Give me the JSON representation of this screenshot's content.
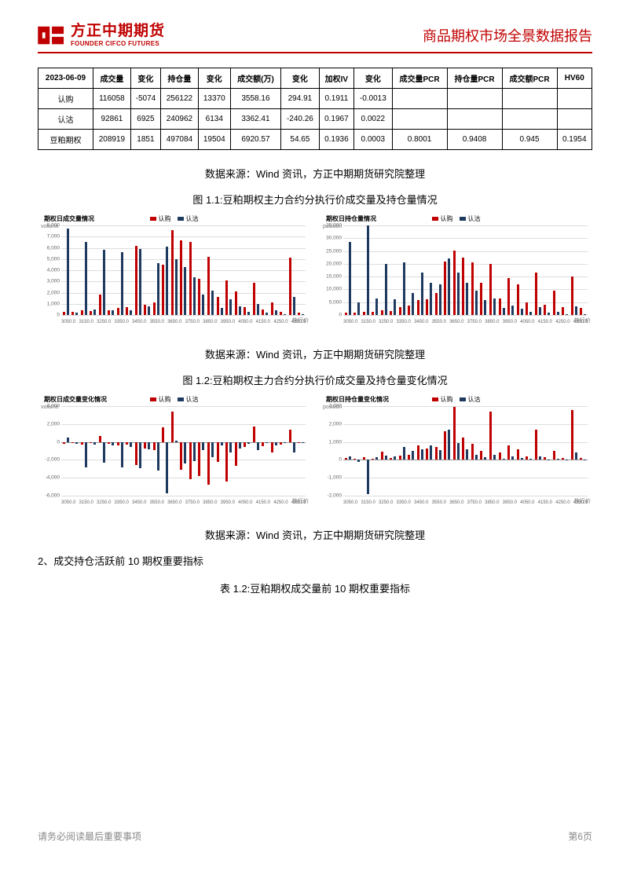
{
  "header": {
    "logo_cn": "方正中期期货",
    "logo_en": "FOUNDER CIFCO FUTURES",
    "doc_title": "商品期权市场全景数据报告"
  },
  "colors": {
    "accent": "#c00000",
    "navy": "#1f3a5f",
    "grid": "#dddddd",
    "text": "#000000",
    "footer": "#888888"
  },
  "table1": {
    "headers": [
      "2023-06-09",
      "成交量",
      "变化",
      "持仓量",
      "变化",
      "成交额(万)",
      "变化",
      "加权IV",
      "变化",
      "成交量PCR",
      "持仓量PCR",
      "成交额PCR",
      "HV60"
    ],
    "rows": [
      [
        "认购",
        "116058",
        "-5074",
        "256122",
        "13370",
        "3558.16",
        "294.91",
        "0.1911",
        "-0.0013",
        "",
        "",
        "",
        ""
      ],
      [
        "认沽",
        "92861",
        "6925",
        "240962",
        "6134",
        "3362.41",
        "-240.26",
        "0.1967",
        "0.0022",
        "",
        "",
        "",
        ""
      ],
      [
        "豆粕期权",
        "208919",
        "1851",
        "497084",
        "19504",
        "6920.57",
        "54.65",
        "0.1936",
        "0.0003",
        "0.8001",
        "0.9408",
        "0.945",
        "0.1954"
      ]
    ]
  },
  "source_text": "数据来源：Wind 资讯，方正中期期货研究院整理",
  "fig11_title": "图 1.1:豆粕期权主力合约分执行价成交量及持仓量情况",
  "fig12_title": "图 1.2:豆粕期权主力合约分执行价成交量及持仓量变化情况",
  "section2_heading": "2、成交持仓活跃前 10 期权重要指标",
  "table12_caption": "表 1.2:豆粕期权成交量前 10 期权重要指标",
  "footer": {
    "disclaimer": "请务必阅读最后重要事项",
    "page": "第6页"
  },
  "legend": {
    "call": "认购",
    "put": "认沽"
  },
  "chart_axis": {
    "strike_label": "执行价"
  },
  "chart11L": {
    "title": "期权日成交量情况",
    "ylabel": "volume",
    "ylim": [
      0,
      8000
    ],
    "ytick_step": 1000,
    "strikes": [
      3050,
      3100,
      3150,
      3200,
      3250,
      3300,
      3350,
      3400,
      3450,
      3500,
      3550,
      3600,
      3650,
      3700,
      3750,
      3800,
      3850,
      3900,
      3950,
      4000,
      4050,
      4100,
      4150,
      4200,
      4250,
      4300,
      4350
    ],
    "call": [
      300,
      250,
      400,
      350,
      1800,
      450,
      600,
      700,
      6200,
      900,
      1100,
      4500,
      7600,
      6700,
      6500,
      3200,
      5200,
      1600,
      3100,
      2100,
      700,
      2900,
      500,
      1100,
      300,
      5100,
      200
    ],
    "put": [
      7700,
      200,
      6500,
      500,
      5800,
      400,
      5600,
      450,
      5900,
      800,
      4600,
      6100,
      5000,
      4300,
      3400,
      1800,
      2200,
      600,
      1400,
      800,
      300,
      1000,
      200,
      400,
      100,
      1600,
      50
    ]
  },
  "chart11R": {
    "title": "期权日持仓量情况",
    "ylabel": "position",
    "ylim": [
      0,
      35000
    ],
    "ytick_step": 5000,
    "strikes": [
      3050,
      3100,
      3150,
      3200,
      3250,
      3300,
      3350,
      3400,
      3450,
      3500,
      3550,
      3600,
      3650,
      3700,
      3750,
      3800,
      3850,
      3900,
      3950,
      4000,
      4050,
      4100,
      4150,
      4200,
      4250,
      4300,
      4350
    ],
    "call": [
      1000,
      800,
      1200,
      1100,
      2000,
      1600,
      3200,
      3800,
      5800,
      6200,
      8500,
      20800,
      25200,
      22500,
      20500,
      12500,
      20000,
      6500,
      14500,
      12000,
      5000,
      16500,
      4000,
      9500,
      3000,
      15000,
      2800
    ],
    "put": [
      28500,
      4800,
      35000,
      6500,
      20000,
      6000,
      20500,
      8500,
      16500,
      12500,
      12000,
      22000,
      16500,
      12500,
      9500,
      5800,
      6500,
      2800,
      3800,
      2400,
      1200,
      3000,
      800,
      1300,
      400,
      3500,
      300
    ]
  },
  "chart12L": {
    "title": "期权日成交量变化情况",
    "ylabel": "volume",
    "ylim": [
      -6000,
      4000
    ],
    "ytick_step": 2000,
    "strikes": [
      3050,
      3100,
      3150,
      3200,
      3250,
      3300,
      3350,
      3400,
      3450,
      3500,
      3550,
      3600,
      3650,
      3700,
      3750,
      3800,
      3850,
      3900,
      3950,
      4000,
      4050,
      4100,
      4150,
      4200,
      4250,
      4300,
      4350
    ],
    "call": [
      -200,
      -100,
      -300,
      -150,
      700,
      -200,
      -400,
      -300,
      -2600,
      -700,
      -900,
      1600,
      3400,
      -3100,
      -4200,
      -3800,
      -4800,
      -2200,
      -4400,
      -2700,
      -600,
      1700,
      -500,
      -1200,
      -300,
      1400,
      -100
    ],
    "put": [
      500,
      -200,
      -2800,
      -300,
      -2300,
      -400,
      -2800,
      -600,
      -2900,
      -800,
      -3200,
      -5700,
      100,
      -2400,
      -2100,
      -900,
      -1700,
      -400,
      -1200,
      -700,
      -200,
      -900,
      -100,
      -400,
      -50,
      -1200,
      -50
    ]
  },
  "chart12R": {
    "title": "期权日持仓量变化情况",
    "ylabel": "position",
    "ylim": [
      -2000,
      3000
    ],
    "ytick_step": 1000,
    "strikes": [
      3050,
      3100,
      3150,
      3200,
      3250,
      3300,
      3350,
      3400,
      3450,
      3500,
      3550,
      3600,
      3650,
      3700,
      3750,
      3800,
      3850,
      3900,
      3950,
      4000,
      4050,
      4100,
      4150,
      4200,
      4250,
      4300,
      4350
    ],
    "call": [
      100,
      50,
      150,
      80,
      450,
      120,
      250,
      300,
      800,
      650,
      700,
      1600,
      2950,
      1250,
      900,
      500,
      2700,
      400,
      800,
      600,
      200,
      1700,
      150,
      500,
      120,
      2800,
      100
    ],
    "put": [
      200,
      -100,
      -1900,
      150,
      250,
      200,
      700,
      500,
      600,
      800,
      550,
      1700,
      950,
      600,
      300,
      150,
      300,
      80,
      180,
      100,
      50,
      200,
      30,
      80,
      20,
      400,
      15
    ]
  }
}
